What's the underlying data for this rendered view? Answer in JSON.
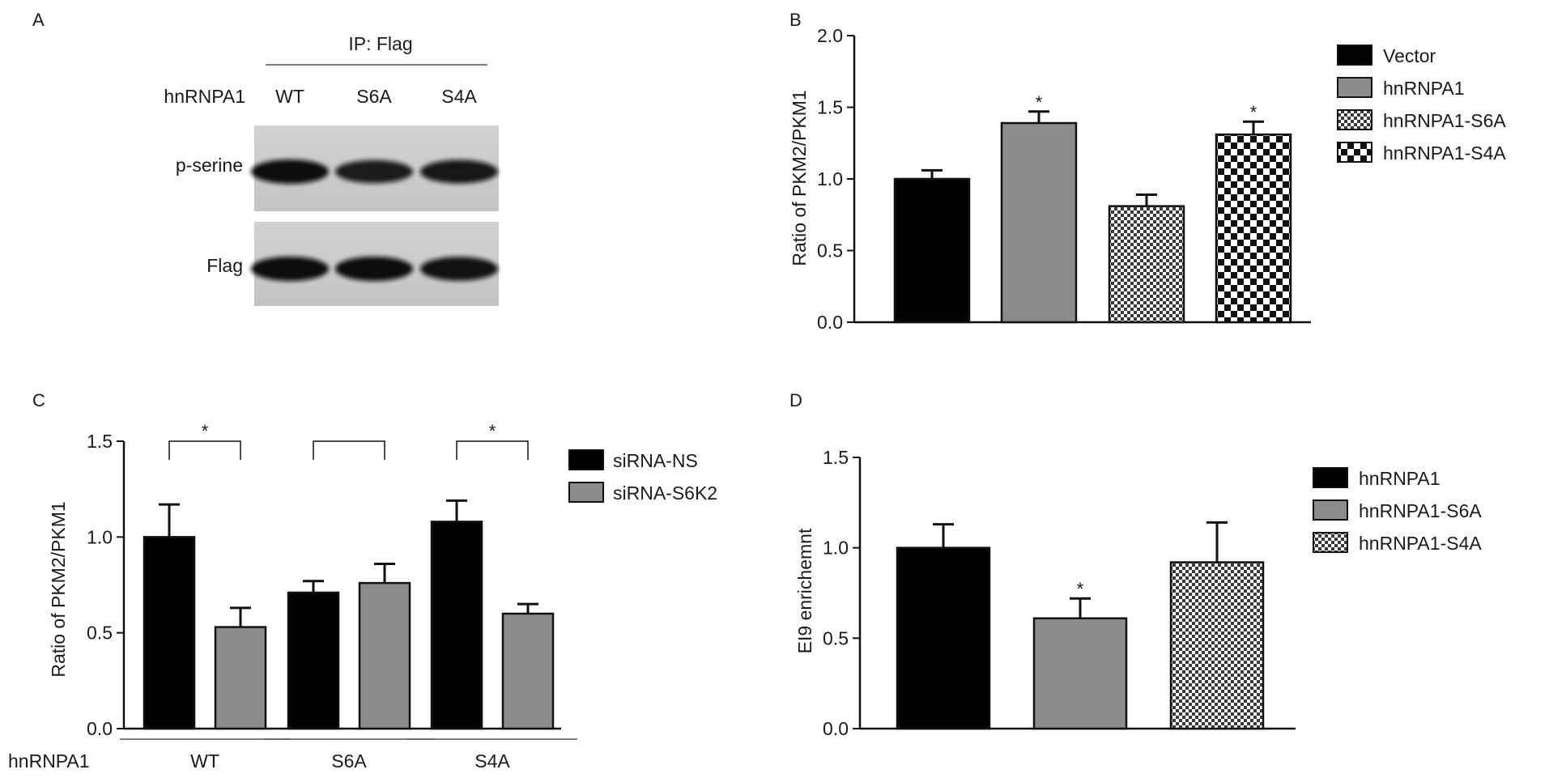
{
  "panels": {
    "A": {
      "letter": "A",
      "ip_label": "IP: Flag",
      "row_label": "hnRNPA1",
      "lanes": [
        "WT",
        "S6A",
        "S4A"
      ],
      "blots": [
        {
          "label": "p-serine",
          "band_intensity": [
            1.0,
            0.85,
            0.9
          ]
        },
        {
          "label": "Flag",
          "band_intensity": [
            1.0,
            1.0,
            0.95
          ]
        }
      ]
    },
    "B": {
      "letter": "B"
    },
    "C": {
      "letter": "C",
      "group_label": "hnRNPA1"
    },
    "D": {
      "letter": "D"
    }
  },
  "chart_data": [
    {
      "panel": "B",
      "type": "bar",
      "ylabel": "Ratio of PKM2/PKM1",
      "ylim": [
        0,
        2.0
      ],
      "yticks": [
        "0.0",
        "0.5",
        "1.0",
        "1.5",
        "2.0"
      ],
      "legend_position": "right",
      "series": [
        {
          "name": "Vector",
          "value": 1.0,
          "error": 0.06,
          "pattern": "solid-black",
          "significance": ""
        },
        {
          "name": "hnRNPA1",
          "value": 1.39,
          "error": 0.08,
          "pattern": "solid-gray",
          "significance": "*"
        },
        {
          "name": "hnRNPA1-S6A",
          "value": 0.81,
          "error": 0.08,
          "pattern": "fine-checker",
          "significance": ""
        },
        {
          "name": "hnRNPA1-S4A",
          "value": 1.31,
          "error": 0.09,
          "pattern": "coarse-checker",
          "significance": "*"
        }
      ]
    },
    {
      "panel": "C",
      "type": "bar",
      "ylabel": "Ratio of PKM2/PKM1",
      "ylim": [
        0,
        1.5
      ],
      "yticks": [
        "0.0",
        "0.5",
        "1.0",
        "1.5"
      ],
      "legend_position": "right",
      "categories": [
        "WT",
        "S6A",
        "S4A"
      ],
      "series": [
        {
          "name": "siRNA-NS",
          "values": [
            1.0,
            0.71,
            1.08
          ],
          "errors": [
            0.17,
            0.06,
            0.11
          ],
          "pattern": "solid-black"
        },
        {
          "name": "siRNA-S6K2",
          "values": [
            0.53,
            0.76,
            0.6
          ],
          "errors": [
            0.1,
            0.1,
            0.05
          ],
          "pattern": "solid-gray"
        }
      ],
      "brackets": [
        "*",
        "",
        "*"
      ]
    },
    {
      "panel": "D",
      "type": "bar",
      "ylabel": "EI9 enrichemnt",
      "ylim": [
        0,
        1.5
      ],
      "yticks": [
        "0.0",
        "0.5",
        "1.0",
        "1.5"
      ],
      "legend_position": "right",
      "series": [
        {
          "name": "hnRNPA1",
          "value": 1.0,
          "error": 0.13,
          "pattern": "solid-black",
          "significance": ""
        },
        {
          "name": "hnRNPA1-S6A",
          "value": 0.61,
          "error": 0.11,
          "pattern": "solid-gray",
          "significance": "*"
        },
        {
          "name": "hnRNPA1-S4A",
          "value": 0.92,
          "error": 0.22,
          "pattern": "fine-checker",
          "significance": ""
        }
      ]
    }
  ]
}
